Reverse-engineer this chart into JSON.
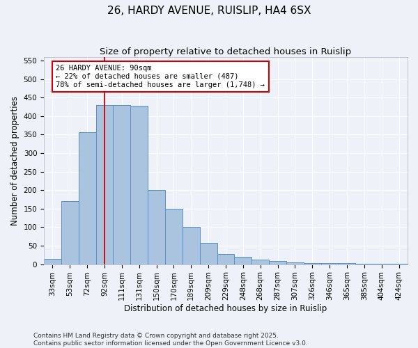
{
  "title": "26, HARDY AVENUE, RUISLIP, HA4 6SX",
  "subtitle": "Size of property relative to detached houses in Ruislip",
  "xlabel": "Distribution of detached houses by size in Ruislip",
  "ylabel": "Number of detached properties",
  "categories": [
    "33sqm",
    "53sqm",
    "72sqm",
    "92sqm",
    "111sqm",
    "131sqm",
    "150sqm",
    "170sqm",
    "189sqm",
    "209sqm",
    "229sqm",
    "248sqm",
    "268sqm",
    "287sqm",
    "307sqm",
    "326sqm",
    "346sqm",
    "365sqm",
    "385sqm",
    "404sqm",
    "424sqm"
  ],
  "values": [
    15,
    170,
    357,
    430,
    430,
    428,
    200,
    150,
    100,
    58,
    27,
    20,
    13,
    8,
    5,
    3,
    3,
    3,
    2,
    2,
    2
  ],
  "bar_color": "#aac4e0",
  "bar_edge_color": "#5590c8",
  "bar_width": 1.0,
  "vline_x": 3,
  "vline_color": "#cc0000",
  "annotation_line1": "26 HARDY AVENUE: 90sqm",
  "annotation_line2": "← 22% of detached houses are smaller (487)",
  "annotation_line3": "78% of semi-detached houses are larger (1,748) →",
  "annotation_box_color": "#ffffff",
  "annotation_box_edge": "#cc0000",
  "ylim": [
    0,
    560
  ],
  "yticks": [
    0,
    50,
    100,
    150,
    200,
    250,
    300,
    350,
    400,
    450,
    500,
    550
  ],
  "footer1": "Contains HM Land Registry data © Crown copyright and database right 2025.",
  "footer2": "Contains public sector information licensed under the Open Government Licence v3.0.",
  "bg_color": "#eef2f8",
  "grid_color": "#ffffff",
  "title_fontsize": 11,
  "subtitle_fontsize": 9.5,
  "axis_label_fontsize": 8.5,
  "tick_fontsize": 7.5,
  "annotation_fontsize": 7.5,
  "footer_fontsize": 6.5
}
